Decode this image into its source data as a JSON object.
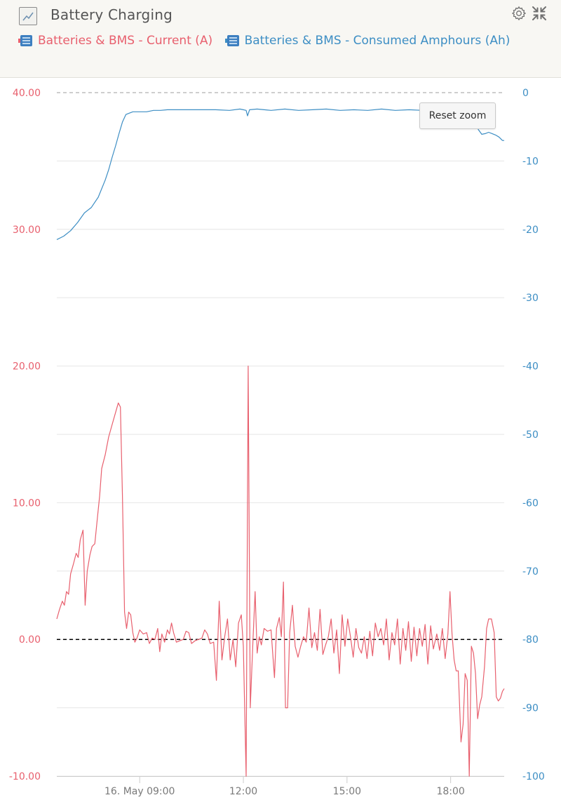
{
  "header": {
    "title": "Battery Charging"
  },
  "legend": [
    {
      "label": "Batteries & BMS  - Current (A)",
      "color": "#e8606e"
    },
    {
      "label": "Batteries & BMS  - Consumed Amphours (Ah)",
      "color": "#3d8ec4"
    }
  ],
  "reset_zoom_label": "Reset zoom",
  "colors": {
    "current": "#e8606e",
    "amphours": "#3d8ec4",
    "grid": "#e6e6e6",
    "tick_text": "#7a7a7a"
  },
  "chart_data": {
    "type": "line",
    "xlabel": "",
    "x_axis": {
      "unit": "hours since midnight, 16 May",
      "range": [
        6.6,
        19.55
      ],
      "ticks": [
        {
          "value": 9,
          "label": "16. May 09:00"
        },
        {
          "value": 12,
          "label": "12:00"
        },
        {
          "value": 15,
          "label": "15:00"
        },
        {
          "value": 18,
          "label": "18:00"
        }
      ]
    },
    "y_left": {
      "range": [
        -10,
        40
      ],
      "ticks": [
        -10,
        0,
        10,
        20,
        30,
        40
      ],
      "tick_labels": [
        "-10.00",
        "0.00",
        "10.00",
        "20.00",
        "30.00",
        "40.00"
      ]
    },
    "y_right": {
      "range": [
        -100,
        0
      ],
      "ticks": [
        -100,
        -90,
        -80,
        -70,
        -60,
        -50,
        -40,
        -30,
        -20,
        -10,
        0
      ],
      "tick_labels": [
        "-100",
        "-90",
        "-80",
        "-70",
        "-60",
        "-50",
        "-40",
        "-30",
        "-20",
        "-10",
        "0"
      ]
    },
    "reference_lines": [
      {
        "axis": "left",
        "value": 0,
        "style": "dashed"
      },
      {
        "axis": "right",
        "value": 0,
        "style": "dashed"
      }
    ],
    "series": [
      {
        "name": "Batteries & BMS  - Current (A)",
        "axis": "left",
        "points": [
          [
            6.6,
            1.5
          ],
          [
            6.68,
            2.2
          ],
          [
            6.76,
            2.8
          ],
          [
            6.82,
            2.5
          ],
          [
            6.88,
            3.5
          ],
          [
            6.94,
            3.3
          ],
          [
            7.0,
            4.8
          ],
          [
            7.08,
            5.5
          ],
          [
            7.16,
            6.3
          ],
          [
            7.22,
            6.0
          ],
          [
            7.28,
            7.3
          ],
          [
            7.36,
            8.0
          ],
          [
            7.42,
            2.5
          ],
          [
            7.48,
            5.0
          ],
          [
            7.56,
            6.2
          ],
          [
            7.62,
            6.8
          ],
          [
            7.7,
            7.0
          ],
          [
            7.78,
            9.0
          ],
          [
            7.84,
            10.5
          ],
          [
            7.9,
            12.5
          ],
          [
            8.0,
            13.5
          ],
          [
            8.1,
            14.8
          ],
          [
            8.2,
            15.7
          ],
          [
            8.3,
            16.6
          ],
          [
            8.38,
            17.3
          ],
          [
            8.44,
            17.0
          ],
          [
            8.5,
            10.5
          ],
          [
            8.56,
            2.0
          ],
          [
            8.62,
            0.8
          ],
          [
            8.68,
            2.0
          ],
          [
            8.74,
            1.8
          ],
          [
            8.8,
            0.5
          ],
          [
            8.86,
            -0.2
          ],
          [
            8.92,
            0.1
          ],
          [
            9.0,
            0.7
          ],
          [
            9.1,
            0.4
          ],
          [
            9.2,
            0.5
          ],
          [
            9.28,
            -0.3
          ],
          [
            9.36,
            0.1
          ],
          [
            9.44,
            0.0
          ],
          [
            9.52,
            0.8
          ],
          [
            9.58,
            -0.9
          ],
          [
            9.64,
            0.4
          ],
          [
            9.72,
            -0.2
          ],
          [
            9.8,
            0.7
          ],
          [
            9.86,
            0.4
          ],
          [
            9.92,
            1.2
          ],
          [
            9.98,
            0.5
          ],
          [
            10.06,
            -0.2
          ],
          [
            10.16,
            -0.1
          ],
          [
            10.26,
            0.0
          ],
          [
            10.34,
            0.6
          ],
          [
            10.42,
            0.5
          ],
          [
            10.5,
            -0.3
          ],
          [
            10.6,
            -0.1
          ],
          [
            10.7,
            0.0
          ],
          [
            10.8,
            0.1
          ],
          [
            10.88,
            0.7
          ],
          [
            10.96,
            0.4
          ],
          [
            11.04,
            -0.3
          ],
          [
            11.14,
            -0.2
          ],
          [
            11.22,
            -3.0
          ],
          [
            11.3,
            2.8
          ],
          [
            11.38,
            -1.5
          ],
          [
            11.46,
            0.2
          ],
          [
            11.54,
            1.5
          ],
          [
            11.62,
            -1.5
          ],
          [
            11.7,
            0.0
          ],
          [
            11.78,
            -2.0
          ],
          [
            11.86,
            1.2
          ],
          [
            11.94,
            1.8
          ],
          [
            12.0,
            -0.5
          ],
          [
            12.08,
            -10.0
          ],
          [
            12.14,
            20.0
          ],
          [
            12.2,
            -5.0
          ],
          [
            12.28,
            0.0
          ],
          [
            12.34,
            3.5
          ],
          [
            12.4,
            -1.0
          ],
          [
            12.46,
            0.2
          ],
          [
            12.52,
            -0.4
          ],
          [
            12.6,
            0.8
          ],
          [
            12.7,
            0.6
          ],
          [
            12.8,
            0.7
          ],
          [
            12.9,
            -2.8
          ],
          [
            12.96,
            0.8
          ],
          [
            13.04,
            1.6
          ],
          [
            13.1,
            0.2
          ],
          [
            13.16,
            4.2
          ],
          [
            13.22,
            -5.0
          ],
          [
            13.28,
            -5.0
          ],
          [
            13.34,
            0.5
          ],
          [
            13.42,
            2.5
          ],
          [
            13.5,
            -0.5
          ],
          [
            13.58,
            -1.3
          ],
          [
            13.66,
            -0.5
          ],
          [
            13.74,
            0.2
          ],
          [
            13.82,
            -0.2
          ],
          [
            13.9,
            2.3
          ],
          [
            13.98,
            -0.6
          ],
          [
            14.06,
            0.5
          ],
          [
            14.14,
            -0.8
          ],
          [
            14.22,
            2.2
          ],
          [
            14.3,
            -1.1
          ],
          [
            14.38,
            -0.4
          ],
          [
            14.46,
            0.2
          ],
          [
            14.54,
            1.5
          ],
          [
            14.62,
            -1.0
          ],
          [
            14.7,
            0.7
          ],
          [
            14.78,
            -2.5
          ],
          [
            14.86,
            1.8
          ],
          [
            14.94,
            -0.5
          ],
          [
            15.02,
            1.5
          ],
          [
            15.1,
            0.2
          ],
          [
            15.18,
            -1.3
          ],
          [
            15.26,
            0.8
          ],
          [
            15.34,
            -0.6
          ],
          [
            15.42,
            -1.0
          ],
          [
            15.5,
            0.2
          ],
          [
            15.58,
            -1.4
          ],
          [
            15.66,
            0.6
          ],
          [
            15.74,
            -1.2
          ],
          [
            15.82,
            1.2
          ],
          [
            15.9,
            0.2
          ],
          [
            15.98,
            0.8
          ],
          [
            16.06,
            -0.4
          ],
          [
            16.14,
            1.5
          ],
          [
            16.22,
            -1.5
          ],
          [
            16.3,
            0.5
          ],
          [
            16.38,
            -0.4
          ],
          [
            16.46,
            1.5
          ],
          [
            16.54,
            -1.8
          ],
          [
            16.62,
            0.8
          ],
          [
            16.7,
            -0.8
          ],
          [
            16.78,
            1.3
          ],
          [
            16.86,
            -1.6
          ],
          [
            16.94,
            0.9
          ],
          [
            17.02,
            -1.2
          ],
          [
            17.1,
            0.8
          ],
          [
            17.18,
            -0.5
          ],
          [
            17.26,
            1.1
          ],
          [
            17.34,
            -1.8
          ],
          [
            17.42,
            1.0
          ],
          [
            17.5,
            -0.7
          ],
          [
            17.6,
            0.4
          ],
          [
            17.68,
            -0.8
          ],
          [
            17.76,
            0.8
          ],
          [
            17.84,
            -1.4
          ],
          [
            17.92,
            0.4
          ],
          [
            17.98,
            3.5
          ],
          [
            18.04,
            0.4
          ],
          [
            18.1,
            -1.5
          ],
          [
            18.16,
            -2.3
          ],
          [
            18.22,
            -2.3
          ],
          [
            18.3,
            -7.5
          ],
          [
            18.36,
            -6.2
          ],
          [
            18.42,
            -2.5
          ],
          [
            18.48,
            -3.0
          ],
          [
            18.54,
            -10.0
          ],
          [
            18.6,
            -0.5
          ],
          [
            18.66,
            -1.0
          ],
          [
            18.72,
            -2.5
          ],
          [
            18.78,
            -5.8
          ],
          [
            18.84,
            -4.8
          ],
          [
            18.9,
            -4.2
          ],
          [
            18.98,
            -2.0
          ],
          [
            19.04,
            0.8
          ],
          [
            19.1,
            1.5
          ],
          [
            19.18,
            1.5
          ],
          [
            19.26,
            0.5
          ],
          [
            19.32,
            -4.2
          ],
          [
            19.38,
            -4.5
          ],
          [
            19.44,
            -4.3
          ],
          [
            19.5,
            -3.8
          ],
          [
            19.55,
            -3.6
          ]
        ]
      },
      {
        "name": "Batteries & BMS  - Consumed Amphours (Ah)",
        "axis": "right",
        "points": [
          [
            6.6,
            -21.5
          ],
          [
            6.8,
            -21.0
          ],
          [
            7.0,
            -20.2
          ],
          [
            7.2,
            -19.0
          ],
          [
            7.4,
            -17.6
          ],
          [
            7.6,
            -16.8
          ],
          [
            7.8,
            -15.3
          ],
          [
            8.0,
            -12.8
          ],
          [
            8.1,
            -11.3
          ],
          [
            8.2,
            -9.5
          ],
          [
            8.3,
            -7.8
          ],
          [
            8.4,
            -6.0
          ],
          [
            8.5,
            -4.3
          ],
          [
            8.6,
            -3.2
          ],
          [
            8.7,
            -3.0
          ],
          [
            8.8,
            -2.8
          ],
          [
            9.0,
            -2.8
          ],
          [
            9.2,
            -2.8
          ],
          [
            9.4,
            -2.6
          ],
          [
            9.6,
            -2.6
          ],
          [
            9.8,
            -2.5
          ],
          [
            10.0,
            -2.5
          ],
          [
            10.4,
            -2.5
          ],
          [
            10.8,
            -2.5
          ],
          [
            11.2,
            -2.5
          ],
          [
            11.6,
            -2.6
          ],
          [
            11.9,
            -2.4
          ],
          [
            12.0,
            -2.5
          ],
          [
            12.08,
            -2.6
          ],
          [
            12.12,
            -3.4
          ],
          [
            12.18,
            -2.5
          ],
          [
            12.4,
            -2.4
          ],
          [
            12.8,
            -2.6
          ],
          [
            13.2,
            -2.4
          ],
          [
            13.6,
            -2.6
          ],
          [
            14.0,
            -2.5
          ],
          [
            14.4,
            -2.4
          ],
          [
            14.8,
            -2.6
          ],
          [
            15.2,
            -2.5
          ],
          [
            15.6,
            -2.6
          ],
          [
            16.0,
            -2.4
          ],
          [
            16.4,
            -2.6
          ],
          [
            16.8,
            -2.5
          ],
          [
            17.2,
            -2.6
          ],
          [
            17.6,
            -2.5
          ],
          [
            18.0,
            -2.6
          ],
          [
            18.4,
            -2.7
          ],
          [
            18.6,
            -3.6
          ],
          [
            18.7,
            -4.5
          ],
          [
            18.8,
            -5.4
          ],
          [
            18.9,
            -6.1
          ],
          [
            19.0,
            -6.0
          ],
          [
            19.1,
            -5.8
          ],
          [
            19.2,
            -6.0
          ],
          [
            19.3,
            -6.2
          ],
          [
            19.4,
            -6.5
          ],
          [
            19.5,
            -7.0
          ],
          [
            19.55,
            -7.0
          ]
        ]
      }
    ]
  }
}
